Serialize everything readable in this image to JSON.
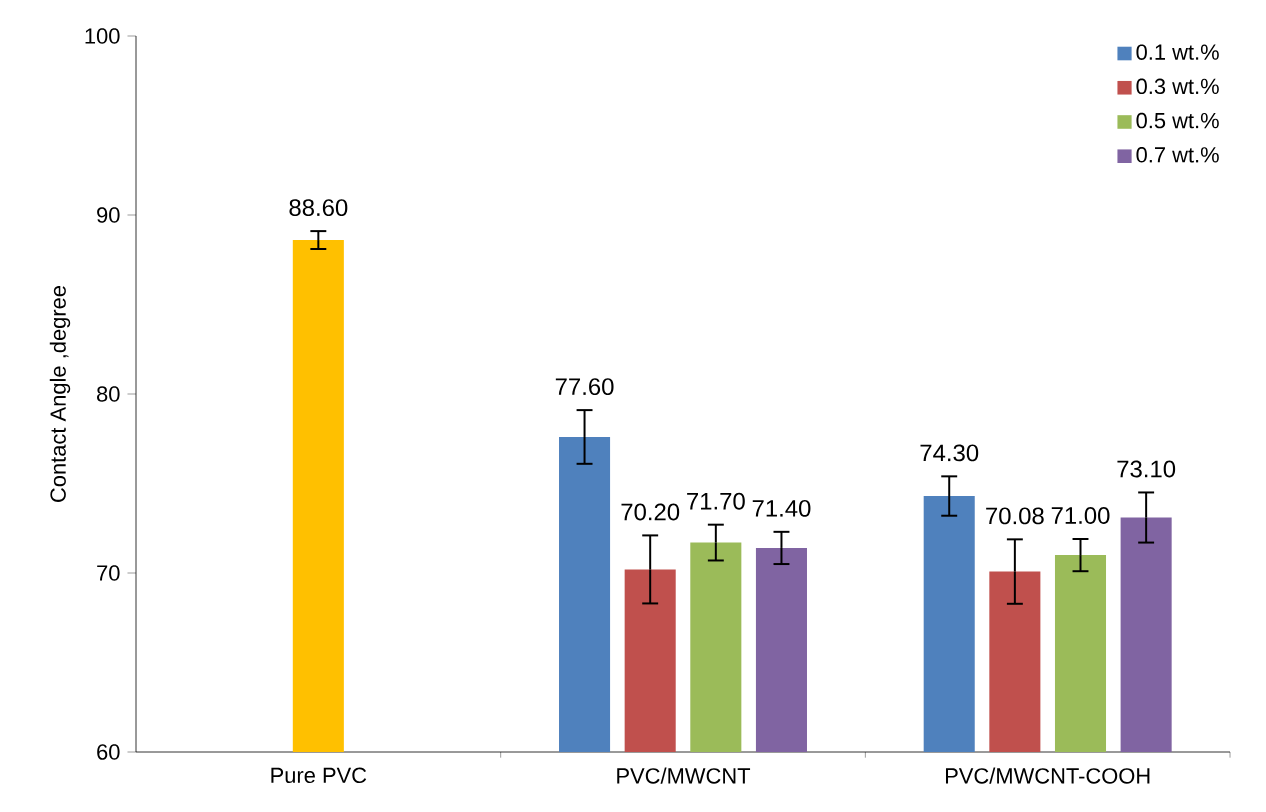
{
  "chart_data": {
    "type": "bar",
    "ylabel": "Contact Angle ,degree",
    "categories": [
      "Pure PVC",
      "PVC/MWCNT",
      "PVC/MWCNT-COOH"
    ],
    "ylim": [
      60,
      100
    ],
    "yticks": [
      60,
      70,
      80,
      90,
      100
    ],
    "legend": "top right",
    "grid": false,
    "series": [
      {
        "color": "#ffc000",
        "values": [
          88.6,
          null,
          null
        ],
        "errors": [
          0.5,
          null,
          null
        ],
        "value_labels": [
          "88.60",
          null,
          null
        ]
      },
      {
        "name": "0.1 wt.%",
        "color": "#4f81bd",
        "values": [
          null,
          77.6,
          74.3
        ],
        "errors": [
          null,
          1.5,
          1.1
        ],
        "value_labels": [
          null,
          "77.60",
          "74.30"
        ]
      },
      {
        "name": "0.3 wt.%",
        "color": "#c0504d",
        "values": [
          null,
          70.2,
          70.08
        ],
        "errors": [
          null,
          1.9,
          1.8
        ],
        "value_labels": [
          null,
          "70.20",
          "70.08"
        ]
      },
      {
        "name": "0.5 wt.%",
        "color": "#9bbb59",
        "values": [
          null,
          71.7,
          71.0
        ],
        "errors": [
          null,
          1.0,
          0.9
        ],
        "value_labels": [
          null,
          "71.70",
          "71.00"
        ]
      },
      {
        "name": "0.7 wt.%",
        "color": "#8064a2",
        "values": [
          null,
          71.4,
          73.1
        ],
        "errors": [
          null,
          0.9,
          1.4
        ],
        "value_labels": [
          null,
          "71.40",
          "73.10"
        ]
      }
    ]
  }
}
